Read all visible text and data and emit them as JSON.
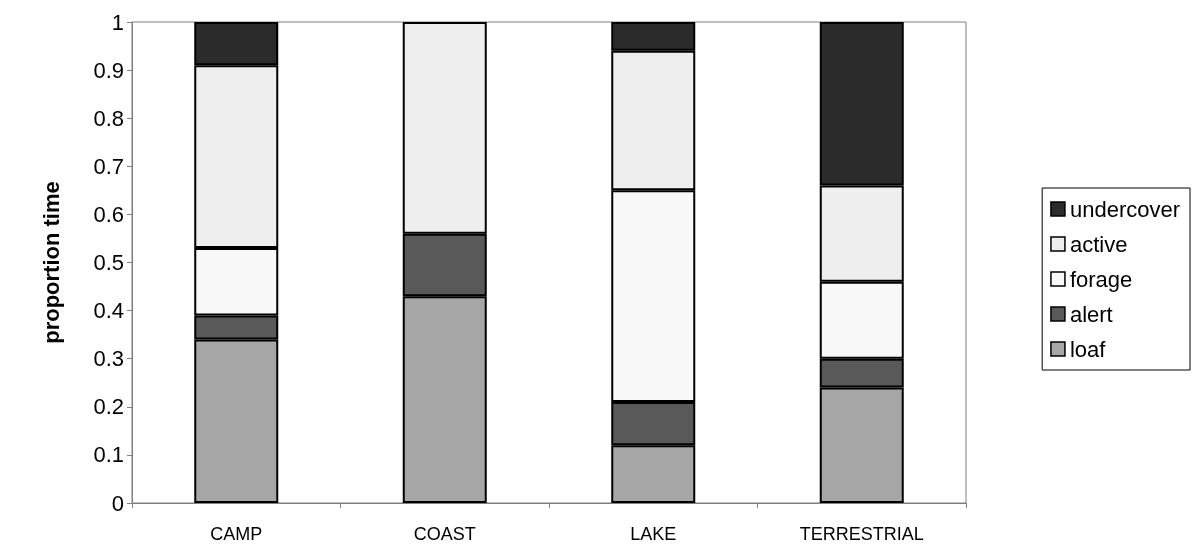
{
  "chart_data": {
    "type": "bar",
    "stacked": true,
    "ylabel": "proportion time",
    "categories": [
      "CAMP",
      "COAST",
      "LAKE",
      "TERRESTRIAL"
    ],
    "series": [
      {
        "name": "loaf",
        "color": "#a6a6a6",
        "values": [
          0.34,
          0.43,
          0.12,
          0.24
        ]
      },
      {
        "name": "alert",
        "color": "#595959",
        "values": [
          0.05,
          0.13,
          0.09,
          0.06
        ]
      },
      {
        "name": "forage",
        "color": "#f8f8f8",
        "values": [
          0.14,
          null,
          0.44,
          0.16
        ]
      },
      {
        "name": "active",
        "color": "#eeeeee",
        "values": [
          0.38,
          0.44,
          0.29,
          0.2
        ]
      },
      {
        "name": "undercover",
        "color": "#2b2b2b",
        "values": [
          0.09,
          null,
          0.06,
          0.34
        ]
      }
    ],
    "ylim": [
      0,
      1
    ],
    "yticks": [
      0,
      0.1,
      0.2,
      0.3,
      0.4,
      0.5,
      0.6,
      0.7,
      0.8,
      0.9,
      1
    ],
    "grid": false,
    "legend": "right"
  }
}
